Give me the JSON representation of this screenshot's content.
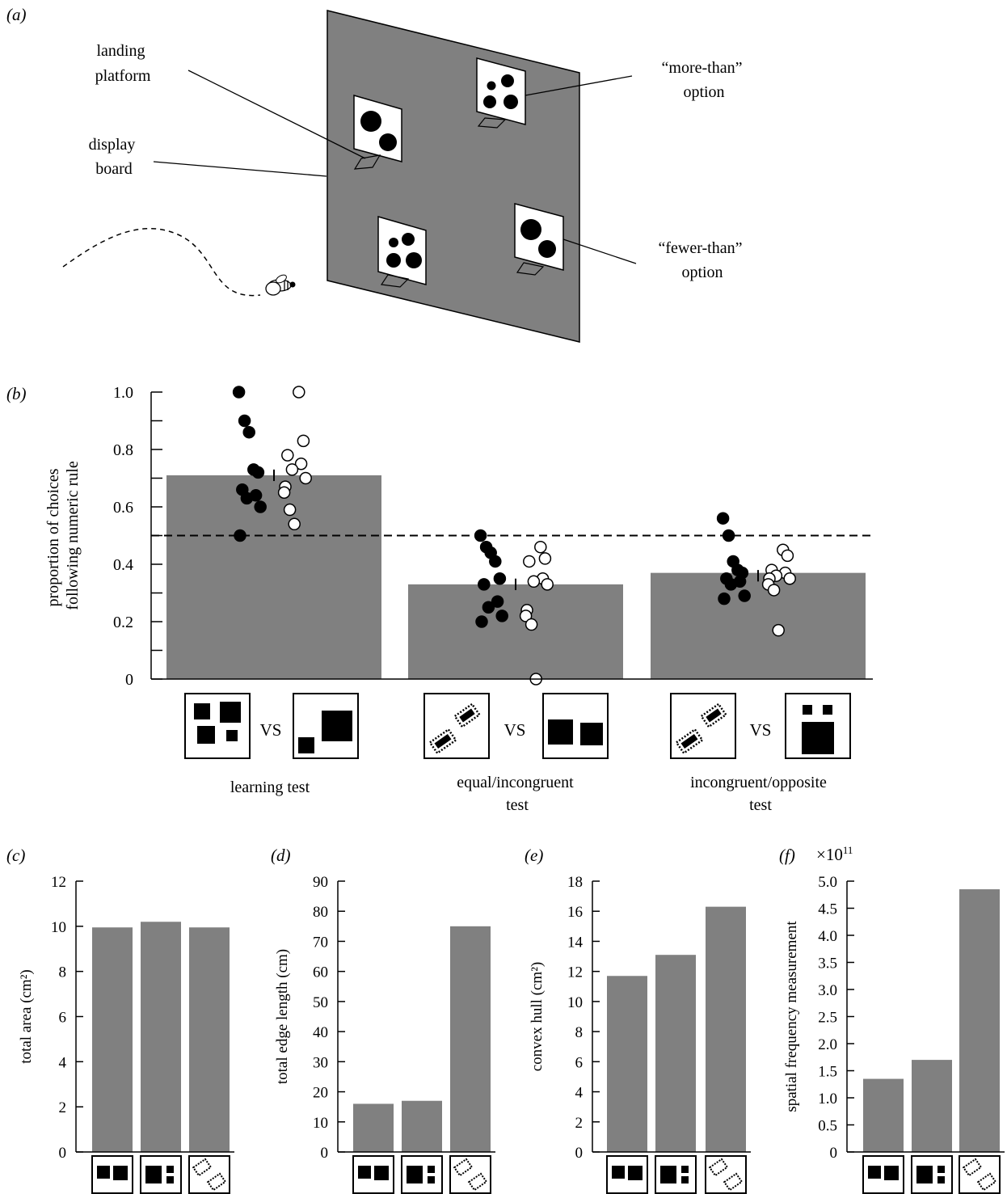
{
  "panel_a": {
    "label": "(a)",
    "callouts": {
      "landing_platform": [
        "landing",
        "platform"
      ],
      "display_board": [
        "display",
        "board"
      ],
      "more_than": [
        "“more-than”",
        "option"
      ],
      "fewer_than": [
        "“fewer-than”",
        "option"
      ]
    }
  },
  "panel_b": {
    "label": "(b)",
    "conditions": [
      "learning test",
      [
        "equal/incongruent",
        "test"
      ],
      [
        "incongruent/opposite",
        "test"
      ]
    ],
    "vs": "VS"
  },
  "panels_cdef": {
    "labels": [
      "(c)",
      "(d)",
      "(e)",
      "(f)"
    ],
    "multiplier": "×10",
    "multiplier_exp": "11"
  },
  "colors": {
    "bar": "#808080",
    "board": "#808080",
    "filled": "#000000",
    "open": "#ffffff",
    "axis": "#000000"
  },
  "chart_data": [
    {
      "id": "b",
      "type": "bar",
      "categories": [
        "learning test",
        "equal/incongruent test",
        "incongruent/opposite test"
      ],
      "values": [
        0.71,
        0.33,
        0.37
      ],
      "ylabel": [
        "proportion of choices",
        "following numeric rule"
      ],
      "ylim": [
        0,
        1.0
      ],
      "yticks": [
        "0",
        "0.2",
        "0.4",
        "0.6",
        "0.8",
        "1.0"
      ],
      "chance_line": 0.5,
      "scatter": {
        "filled": [
          [
            1.0,
            0.9,
            0.86,
            0.73,
            0.72,
            0.66,
            0.64,
            0.63,
            0.6,
            0.5
          ],
          [
            0.5,
            0.46,
            0.44,
            0.41,
            0.35,
            0.33,
            0.27,
            0.25,
            0.22,
            0.2
          ],
          [
            0.56,
            0.5,
            0.41,
            0.38,
            0.37,
            0.35,
            0.34,
            0.33,
            0.29,
            0.28
          ]
        ],
        "open": [
          [
            1.0,
            0.83,
            0.78,
            0.75,
            0.73,
            0.7,
            0.67,
            0.65,
            0.59,
            0.54
          ],
          [
            0.46,
            0.42,
            0.41,
            0.35,
            0.34,
            0.33,
            0.24,
            0.22,
            0.19,
            0.0
          ],
          [
            0.45,
            0.43,
            0.38,
            0.37,
            0.36,
            0.35,
            0.35,
            0.33,
            0.31,
            0.17
          ]
        ],
        "error": [
          [
            0.73,
            0.69
          ],
          [
            0.35,
            0.31
          ],
          [
            0.38,
            0.34
          ]
        ]
      }
    },
    {
      "id": "c",
      "type": "bar",
      "ylabel": "total area (cm²)",
      "ylim": [
        0,
        12
      ],
      "yticks": [
        "0",
        "2",
        "4",
        "6",
        "8",
        "10",
        "12"
      ],
      "values": [
        9.95,
        10.2,
        9.95
      ]
    },
    {
      "id": "d",
      "type": "bar",
      "ylabel": "total edge length (cm)",
      "ylim": [
        0,
        90
      ],
      "yticks": [
        "0",
        "10",
        "20",
        "30",
        "40",
        "50",
        "60",
        "70",
        "80",
        "90"
      ],
      "values": [
        16,
        17,
        75
      ]
    },
    {
      "id": "e",
      "type": "bar",
      "ylabel": "convex hull (cm²)",
      "ylim": [
        0,
        18
      ],
      "yticks": [
        "0",
        "2",
        "4",
        "6",
        "8",
        "10",
        "12",
        "14",
        "16",
        "18"
      ],
      "values": [
        11.7,
        13.1,
        16.3
      ]
    },
    {
      "id": "f",
      "type": "bar",
      "ylabel": "spatial frequency measurement",
      "ylim": [
        0,
        5.0
      ],
      "yticks": [
        "0",
        "0.5",
        "1.0",
        "1.5",
        "2.0",
        "2.5",
        "3.0",
        "3.5",
        "4.0",
        "4.5",
        "5.0"
      ],
      "values": [
        1.35,
        1.7,
        4.85
      ]
    }
  ]
}
